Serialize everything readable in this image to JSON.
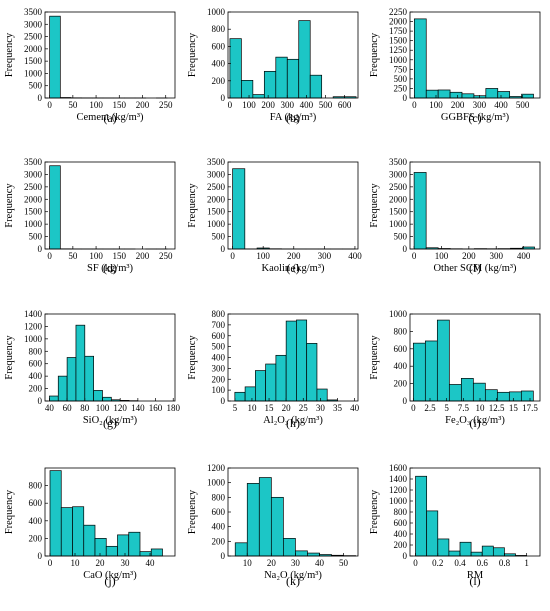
{
  "bar_color": "#1cc6c6",
  "chart_data": [
    {
      "id": "a",
      "type": "bar",
      "panel_label": "(a)",
      "xlabel": "Cement (kg/m³)",
      "ylabel": "Frequency",
      "xlim": [
        -10,
        270
      ],
      "ylim": [
        0,
        3500
      ],
      "xticks": [
        0,
        50,
        100,
        150,
        200,
        250
      ],
      "xticklabels": [
        "0",
        "50",
        "100",
        "150",
        "200",
        "250"
      ],
      "yticks": [
        0,
        500,
        1000,
        1500,
        2000,
        2500,
        3000,
        3500
      ],
      "yticklabels": [
        "0",
        "500",
        "1000",
        "1500",
        "2000",
        "2500",
        "3000",
        "3500"
      ],
      "bins": [
        [
          0,
          23,
          3330
        ],
        [
          23,
          46,
          20
        ],
        [
          46,
          69,
          8
        ],
        [
          69,
          92,
          5
        ],
        [
          92,
          115,
          3
        ],
        [
          115,
          138,
          2
        ],
        [
          138,
          161,
          1
        ],
        [
          161,
          184,
          1
        ],
        [
          184,
          207,
          1
        ],
        [
          207,
          230,
          0
        ],
        [
          230,
          253,
          1
        ]
      ]
    },
    {
      "id": "b",
      "type": "bar",
      "panel_label": "(b)",
      "xlabel": "FA (kg/m³)",
      "ylabel": "Frequency",
      "xlim": [
        -10,
        670
      ],
      "ylim": [
        0,
        1000
      ],
      "xticks": [
        0,
        100,
        200,
        300,
        400,
        500,
        600
      ],
      "xticklabels": [
        "0",
        "100",
        "200",
        "300",
        "400",
        "500",
        "600"
      ],
      "yticks": [
        0,
        200,
        400,
        600,
        800,
        1000
      ],
      "yticklabels": [
        "0",
        "200",
        "400",
        "600",
        "800",
        "1000"
      ],
      "bins": [
        [
          0,
          60,
          690
        ],
        [
          60,
          120,
          205
        ],
        [
          120,
          180,
          40
        ],
        [
          180,
          240,
          310
        ],
        [
          240,
          300,
          475
        ],
        [
          300,
          360,
          450
        ],
        [
          360,
          420,
          900
        ],
        [
          420,
          480,
          265
        ],
        [
          480,
          540,
          0
        ],
        [
          540,
          600,
          15
        ],
        [
          600,
          660,
          15
        ]
      ]
    },
    {
      "id": "c",
      "type": "bar",
      "panel_label": "(c)",
      "xlabel": "GGBFS (kg/m³)",
      "ylabel": "Frequency",
      "xlim": [
        -20,
        580
      ],
      "ylim": [
        0,
        2250
      ],
      "xticks": [
        0,
        100,
        200,
        300,
        400,
        500
      ],
      "xticklabels": [
        "0",
        "100",
        "200",
        "300",
        "400",
        "500"
      ],
      "yticks": [
        0,
        250,
        500,
        750,
        1000,
        1250,
        1500,
        1750,
        2000,
        2250
      ],
      "yticklabels": [
        "0",
        "250",
        "500",
        "750",
        "1000",
        "1250",
        "1500",
        "1750",
        "2000",
        "2250"
      ],
      "bins": [
        [
          0,
          55,
          2070
        ],
        [
          55,
          110,
          205
        ],
        [
          110,
          165,
          210
        ],
        [
          165,
          220,
          150
        ],
        [
          220,
          275,
          110
        ],
        [
          275,
          330,
          60
        ],
        [
          330,
          385,
          250
        ],
        [
          385,
          440,
          170
        ],
        [
          440,
          495,
          40
        ],
        [
          495,
          550,
          100
        ]
      ]
    },
    {
      "id": "d",
      "type": "bar",
      "panel_label": "(d)",
      "xlabel": "SF (kg/m³)",
      "ylabel": "Frequency",
      "xlim": [
        -10,
        270
      ],
      "ylim": [
        0,
        3500
      ],
      "xticks": [
        0,
        50,
        100,
        150,
        200,
        250
      ],
      "xticklabels": [
        "0",
        "50",
        "100",
        "150",
        "200",
        "250"
      ],
      "yticks": [
        0,
        500,
        1000,
        1500,
        2000,
        2500,
        3000,
        3500
      ],
      "yticklabels": [
        "0",
        "500",
        "1000",
        "1500",
        "2000",
        "2500",
        "3000",
        "3500"
      ],
      "bins": [
        [
          0,
          23,
          3350
        ],
        [
          23,
          46,
          8
        ],
        [
          46,
          69,
          5
        ],
        [
          69,
          92,
          3
        ],
        [
          92,
          115,
          2
        ],
        [
          115,
          138,
          1
        ],
        [
          138,
          161,
          1
        ],
        [
          161,
          184,
          1
        ],
        [
          184,
          207,
          0
        ],
        [
          207,
          230,
          1
        ],
        [
          230,
          253,
          1
        ]
      ]
    },
    {
      "id": "e",
      "type": "bar",
      "panel_label": "(e)",
      "xlabel": "Kaolin (kg/m³)",
      "ylabel": "Frequency",
      "xlim": [
        -15,
        410
      ],
      "ylim": [
        0,
        3500
      ],
      "xticks": [
        0,
        100,
        200,
        300,
        400
      ],
      "xticklabels": [
        "0",
        "100",
        "200",
        "300",
        "400"
      ],
      "yticks": [
        0,
        500,
        1000,
        1500,
        2000,
        2500,
        3000,
        3500
      ],
      "yticklabels": [
        "0",
        "500",
        "1000",
        "1500",
        "2000",
        "2500",
        "3000",
        "3500"
      ],
      "bins": [
        [
          0,
          40,
          3230
        ],
        [
          40,
          80,
          5
        ],
        [
          80,
          120,
          40
        ],
        [
          120,
          160,
          10
        ],
        [
          160,
          200,
          3
        ],
        [
          200,
          240,
          3
        ],
        [
          240,
          280,
          2
        ],
        [
          280,
          320,
          2
        ],
        [
          320,
          360,
          1
        ],
        [
          360,
          400,
          1
        ]
      ]
    },
    {
      "id": "f",
      "type": "bar",
      "panel_label": "(f)",
      "xlabel": "Other SCM (kg/m³)",
      "ylabel": "Frequency",
      "xlim": [
        -15,
        460
      ],
      "ylim": [
        0,
        3500
      ],
      "xticks": [
        0,
        100,
        200,
        300,
        400
      ],
      "xticklabels": [
        "0",
        "100",
        "200",
        "300",
        "400"
      ],
      "yticks": [
        0,
        500,
        1000,
        1500,
        2000,
        2500,
        3000,
        3500
      ],
      "yticklabels": [
        "0",
        "500",
        "1000",
        "1500",
        "2000",
        "2500",
        "3000",
        "3500"
      ],
      "bins": [
        [
          0,
          44,
          3080
        ],
        [
          44,
          88,
          50
        ],
        [
          88,
          132,
          20
        ],
        [
          132,
          176,
          10
        ],
        [
          176,
          220,
          5
        ],
        [
          220,
          264,
          15
        ],
        [
          264,
          308,
          10
        ],
        [
          308,
          352,
          15
        ],
        [
          352,
          396,
          30
        ],
        [
          396,
          440,
          80
        ]
      ]
    },
    {
      "id": "g",
      "type": "bar",
      "panel_label": "(g)",
      "xlabel": "SiO₂ (kg/m³)",
      "ylabel": "Frequency",
      "xlim": [
        35,
        182
      ],
      "ylim": [
        0,
        1400
      ],
      "xticks": [
        40,
        60,
        80,
        100,
        120,
        140,
        160,
        180
      ],
      "xticklabels": [
        "40",
        "60",
        "80",
        "100",
        "120",
        "140",
        "160",
        "180"
      ],
      "yticks": [
        0,
        200,
        400,
        600,
        800,
        1000,
        1200,
        1400
      ],
      "yticklabels": [
        "0",
        "200",
        "400",
        "600",
        "800",
        "1000",
        "1200",
        "1400"
      ],
      "bins": [
        [
          40,
          50,
          80
        ],
        [
          50,
          60,
          400
        ],
        [
          60,
          70,
          700
        ],
        [
          70,
          80,
          1220
        ],
        [
          80,
          90,
          720
        ],
        [
          90,
          100,
          170
        ],
        [
          100,
          110,
          60
        ],
        [
          110,
          120,
          20
        ],
        [
          120,
          130,
          10
        ],
        [
          130,
          140,
          5
        ]
      ]
    },
    {
      "id": "h",
      "type": "bar",
      "panel_label": "(h)",
      "xlabel": "Al₂O₃ (kg/m³)",
      "ylabel": "Frequency",
      "xlim": [
        3,
        41
      ],
      "ylim": [
        0,
        800
      ],
      "xticks": [
        5,
        10,
        15,
        20,
        25,
        30,
        35,
        40
      ],
      "xticklabels": [
        "5",
        "10",
        "15",
        "20",
        "25",
        "30",
        "35",
        "40"
      ],
      "yticks": [
        0,
        100,
        200,
        300,
        400,
        500,
        600,
        700,
        800
      ],
      "yticklabels": [
        "0",
        "100",
        "200",
        "300",
        "400",
        "500",
        "600",
        "700",
        "800"
      ],
      "bins": [
        [
          5,
          8,
          80
        ],
        [
          8,
          11,
          130
        ],
        [
          11,
          14,
          280
        ],
        [
          14,
          17,
          340
        ],
        [
          17,
          20,
          420
        ],
        [
          20,
          23,
          735
        ],
        [
          23,
          26,
          745
        ],
        [
          26,
          29,
          530
        ],
        [
          29,
          32,
          110
        ],
        [
          32,
          35,
          10
        ]
      ]
    },
    {
      "id": "i",
      "type": "bar",
      "panel_label": "(i)",
      "xlabel": "Fe₂O₃ (kg/m³)",
      "ylabel": "Frequency",
      "xlim": [
        -0.5,
        19
      ],
      "ylim": [
        0,
        1000
      ],
      "xticks": [
        0,
        2.5,
        5,
        7.5,
        10,
        12.5,
        15,
        17.5
      ],
      "xticklabels": [
        "0",
        "2.5",
        "5",
        "7.5",
        "10",
        "12.5",
        "15",
        "17.5"
      ],
      "yticks": [
        0,
        200,
        400,
        600,
        800,
        1000
      ],
      "yticklabels": [
        "0",
        "200",
        "400",
        "600",
        "800",
        "1000"
      ],
      "bins": [
        [
          0,
          1.8,
          665
        ],
        [
          1.8,
          3.6,
          690
        ],
        [
          3.6,
          5.4,
          930
        ],
        [
          5.4,
          7.2,
          190
        ],
        [
          7.2,
          9,
          260
        ],
        [
          9,
          10.8,
          205
        ],
        [
          10.8,
          12.6,
          130
        ],
        [
          12.6,
          14.4,
          100
        ],
        [
          14.4,
          16.2,
          105
        ],
        [
          16.2,
          18,
          115
        ]
      ]
    },
    {
      "id": "j",
      "type": "bar",
      "panel_label": "(j)",
      "xlabel": "CaO (kg/m³)",
      "ylabel": "Frequency",
      "xlim": [
        -2,
        50
      ],
      "ylim": [
        0,
        1000
      ],
      "xticks": [
        0,
        10,
        20,
        30,
        40
      ],
      "xticklabels": [
        "0",
        "10",
        "20",
        "30",
        "40"
      ],
      "yticks": [
        0,
        200,
        400,
        600,
        800
      ],
      "yticklabels": [
        "0",
        "200",
        "400",
        "600",
        "800"
      ],
      "bins": [
        [
          0,
          4.5,
          970
        ],
        [
          4.5,
          9,
          550
        ],
        [
          9,
          13.5,
          560
        ],
        [
          13.5,
          18,
          350
        ],
        [
          18,
          22.5,
          200
        ],
        [
          22.5,
          27,
          110
        ],
        [
          27,
          31.5,
          240
        ],
        [
          31.5,
          36,
          270
        ],
        [
          36,
          40.5,
          50
        ],
        [
          40.5,
          45,
          80
        ]
      ]
    },
    {
      "id": "k",
      "type": "bar",
      "panel_label": "(k)",
      "xlabel": "Na₂O (kg/m³)",
      "ylabel": "Frequency",
      "xlim": [
        2,
        56
      ],
      "ylim": [
        0,
        1200
      ],
      "xticks": [
        10,
        20,
        30,
        40,
        50
      ],
      "xticklabels": [
        "10",
        "20",
        "30",
        "40",
        "50"
      ],
      "yticks": [
        0,
        200,
        400,
        600,
        800,
        1000,
        1200
      ],
      "yticklabels": [
        "0",
        "200",
        "400",
        "600",
        "800",
        "1000",
        "1200"
      ],
      "bins": [
        [
          5,
          10,
          180
        ],
        [
          10,
          15,
          990
        ],
        [
          15,
          20,
          1070
        ],
        [
          20,
          25,
          800
        ],
        [
          25,
          30,
          240
        ],
        [
          30,
          35,
          70
        ],
        [
          35,
          40,
          40
        ],
        [
          40,
          45,
          20
        ],
        [
          45,
          50,
          10
        ],
        [
          50,
          55,
          5
        ]
      ]
    },
    {
      "id": "l",
      "type": "bar",
      "panel_label": "(l)",
      "xlabel": "RM",
      "ylabel": "Frequency",
      "xlim": [
        -0.05,
        1.12
      ],
      "ylim": [
        0,
        1600
      ],
      "xticks": [
        0,
        0.2,
        0.4,
        0.6,
        0.8,
        1
      ],
      "xticklabels": [
        "0",
        "0.2",
        "0.4",
        "0.6",
        "0.8",
        "1"
      ],
      "yticks": [
        0,
        200,
        400,
        600,
        800,
        1000,
        1200,
        1400,
        1600
      ],
      "yticklabels": [
        "0",
        "200",
        "400",
        "600",
        "800",
        "1000",
        "1200",
        "1400",
        "1600"
      ],
      "bins": [
        [
          0,
          0.1,
          1450
        ],
        [
          0.1,
          0.2,
          820
        ],
        [
          0.2,
          0.3,
          310
        ],
        [
          0.3,
          0.4,
          90
        ],
        [
          0.4,
          0.5,
          250
        ],
        [
          0.5,
          0.6,
          70
        ],
        [
          0.6,
          0.7,
          180
        ],
        [
          0.7,
          0.8,
          150
        ],
        [
          0.8,
          0.9,
          40
        ],
        [
          0.9,
          1.0,
          10
        ]
      ]
    }
  ]
}
